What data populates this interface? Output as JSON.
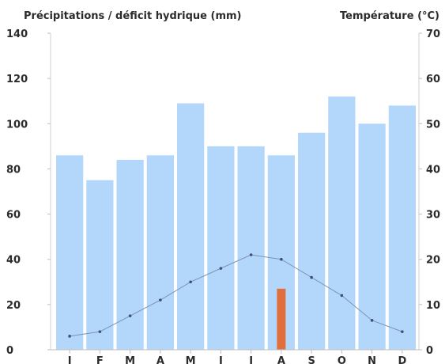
{
  "chart_data": {
    "type": "bar",
    "ylabel_left": "Précipitations / déficit hydrique (mm)",
    "ylabel_right": "Température (°C)",
    "categories": [
      "J",
      "F",
      "M",
      "A",
      "M",
      "J",
      "J",
      "A",
      "S",
      "O",
      "N",
      "D"
    ],
    "y_left_ticks": [
      "0",
      "20",
      "40",
      "60",
      "80",
      "100",
      "120",
      "140"
    ],
    "y_right_ticks": [
      "0",
      "10",
      "20",
      "30",
      "40",
      "50",
      "60",
      "70"
    ],
    "ylim_left": [
      0,
      140
    ],
    "ylim_right": [
      0,
      70
    ],
    "series": [
      {
        "kind": "bar",
        "axis": "left",
        "color": "#b3d7fb",
        "values": [
          86,
          75,
          84,
          86,
          109,
          90,
          90,
          86,
          96,
          112,
          100,
          108
        ]
      },
      {
        "kind": "bar",
        "axis": "left",
        "color": "#e06f3d",
        "values": [
          0,
          0,
          0,
          0,
          0,
          0,
          0,
          27,
          0,
          0,
          0,
          0
        ]
      },
      {
        "kind": "line",
        "axis": "right",
        "color": "#7b93ba",
        "values": [
          3,
          4,
          7.5,
          11,
          15,
          18,
          21,
          20,
          16,
          12,
          6.5,
          4
        ]
      }
    ],
    "grid": false,
    "legend": "none"
  }
}
